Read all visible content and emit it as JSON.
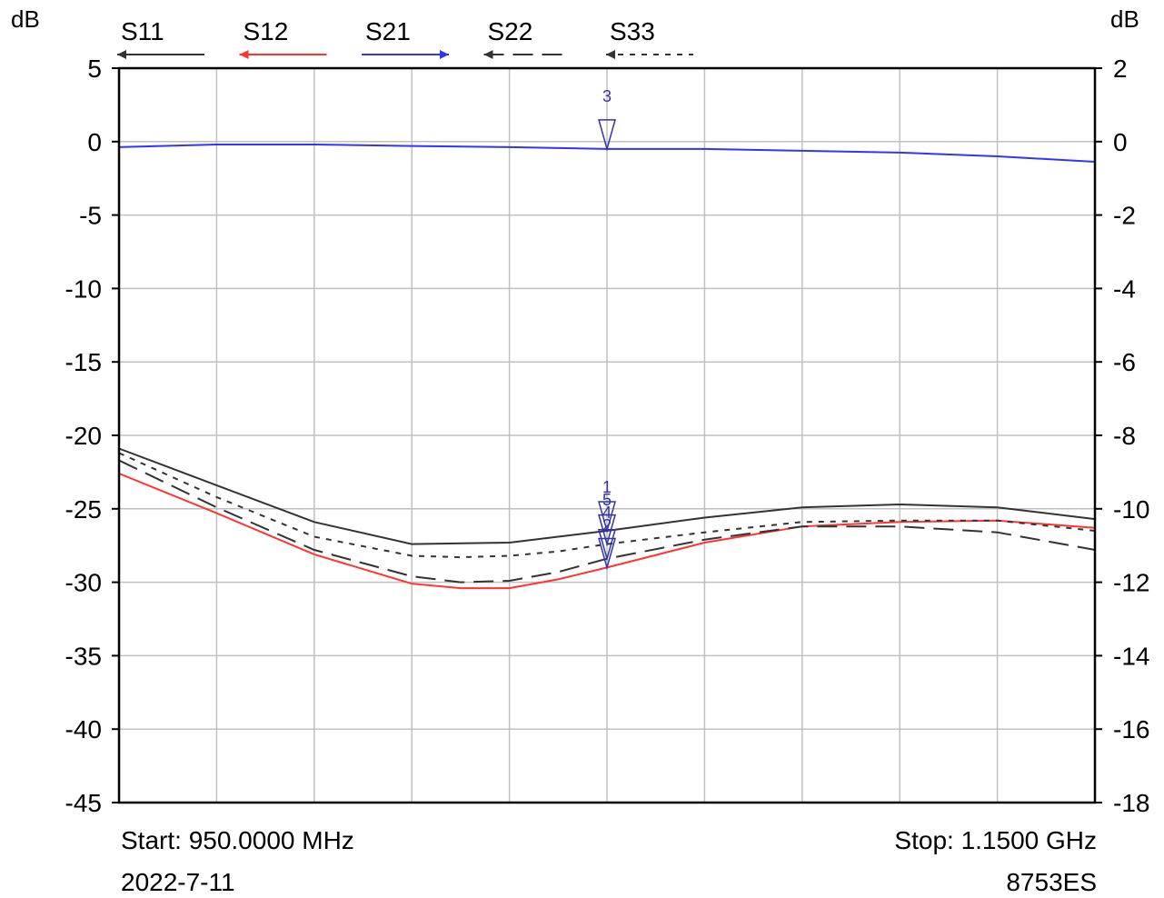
{
  "chart_data": {
    "type": "line",
    "left_axis_unit": "dB",
    "right_axis_unit": "dB",
    "ylim_left": [
      -45,
      5
    ],
    "ylim_right": [
      -18,
      2
    ],
    "left_ticks": [
      "5",
      "0",
      "-5",
      "-10",
      "-15",
      "-20",
      "-25",
      "-30",
      "-35",
      "-40",
      "-45"
    ],
    "right_ticks": [
      "2",
      "0",
      "-2",
      "-4",
      "-6",
      "-8",
      "-10",
      "-12",
      "-14",
      "-16",
      "-18"
    ],
    "x_range_mhz": [
      950,
      1150
    ],
    "x_divisions": 10,
    "grid": true,
    "start_label": "Start: 950.0000 MHz",
    "stop_label": "Stop: 1.1500 GHz",
    "date_label": "2022-7-11",
    "instrument_label": "8753ES",
    "series": [
      {
        "name": "S11",
        "color": "#333333",
        "dash": "solid",
        "arrow": "left",
        "x": [
          950,
          970,
          990,
          1010,
          1030,
          1040,
          1050,
          1070,
          1090,
          1110,
          1130,
          1150
        ],
        "y": [
          -20.9,
          -23.4,
          -25.9,
          -27.4,
          -27.3,
          -26.9,
          -26.5,
          -25.6,
          -24.9,
          -24.7,
          -24.9,
          -25.7
        ]
      },
      {
        "name": "S12",
        "color": "#ff3333",
        "dash": "solid",
        "arrow": "left",
        "x": [
          950,
          970,
          990,
          1010,
          1020,
          1030,
          1040,
          1050,
          1070,
          1090,
          1110,
          1130,
          1150
        ],
        "y": [
          -22.6,
          -25.3,
          -28.1,
          -30.1,
          -30.4,
          -30.4,
          -29.8,
          -29.0,
          -27.3,
          -26.2,
          -25.9,
          -25.8,
          -26.3
        ]
      },
      {
        "name": "S21",
        "color": "#3333ff",
        "dash": "solid",
        "arrow": "right",
        "axis": "right",
        "x": [
          950,
          970,
          990,
          1010,
          1030,
          1050,
          1070,
          1090,
          1110,
          1130,
          1150
        ],
        "y": [
          -0.15,
          -0.08,
          -0.08,
          -0.12,
          -0.15,
          -0.2,
          -0.2,
          -0.25,
          -0.3,
          -0.4,
          -0.55
        ]
      },
      {
        "name": "S22",
        "color": "#333333",
        "dash": "long",
        "arrow": "left",
        "x": [
          950,
          970,
          990,
          1010,
          1020,
          1030,
          1040,
          1050,
          1070,
          1090,
          1110,
          1130,
          1150
        ],
        "y": [
          -21.7,
          -24.9,
          -27.8,
          -29.6,
          -30.0,
          -29.9,
          -29.3,
          -28.4,
          -27.1,
          -26.2,
          -26.2,
          -26.6,
          -27.8
        ]
      },
      {
        "name": "S33",
        "color": "#333333",
        "dash": "short",
        "arrow": "left",
        "x": [
          950,
          970,
          990,
          1010,
          1020,
          1030,
          1040,
          1050,
          1070,
          1090,
          1110,
          1130,
          1150
        ],
        "y": [
          -21.2,
          -24.2,
          -26.9,
          -28.2,
          -28.3,
          -28.2,
          -27.9,
          -27.4,
          -26.6,
          -25.9,
          -25.8,
          -25.8,
          -26.5
        ]
      }
    ],
    "markers": [
      {
        "label": "3",
        "x": 1050,
        "y": -0.2,
        "axis": "right",
        "color": "#3333aa"
      },
      {
        "label": "1",
        "x": 1050,
        "y": -26.5,
        "axis": "left",
        "color": "#3333aa"
      },
      {
        "label": "5",
        "x": 1050,
        "y": -27.4,
        "axis": "left",
        "color": "#3333aa"
      },
      {
        "label": "4",
        "x": 1050,
        "y": -28.4,
        "axis": "left",
        "color": "#3333aa"
      },
      {
        "label": "2",
        "x": 1050,
        "y": -29.0,
        "axis": "left",
        "color": "#3333aa"
      }
    ]
  }
}
